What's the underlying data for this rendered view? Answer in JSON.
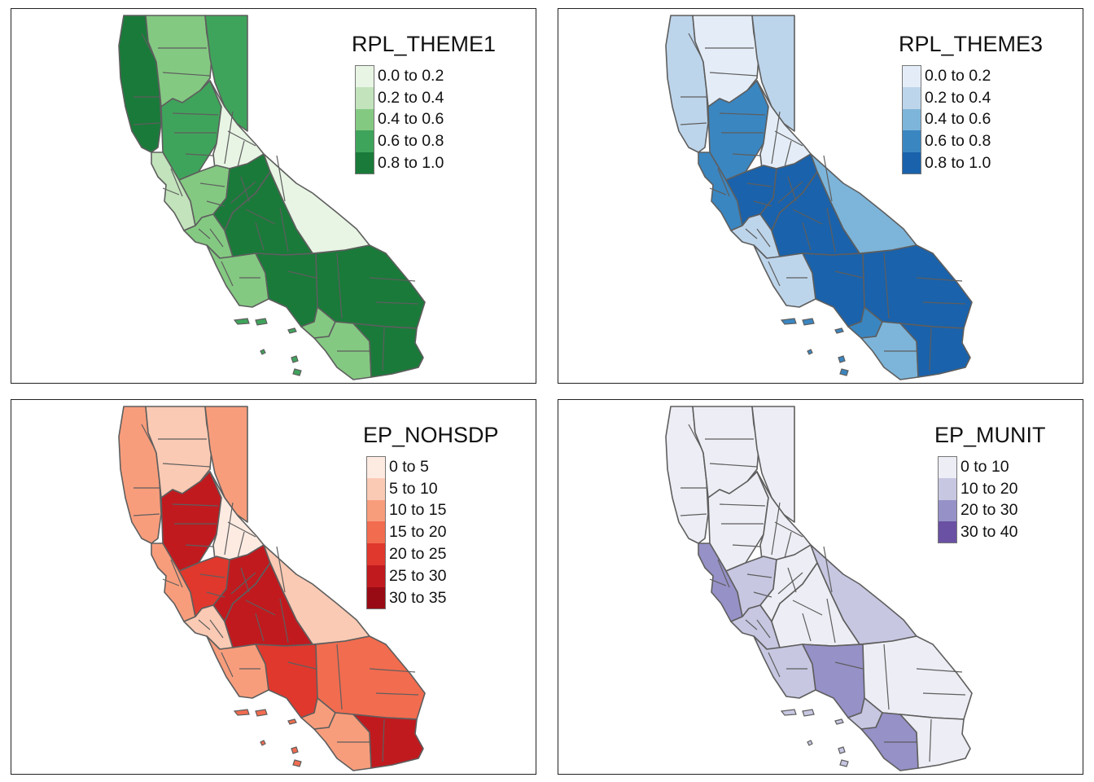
{
  "panels": [
    {
      "id": "rpl_theme1",
      "title": "RPL_THEME1",
      "legend": [
        {
          "label": "0.0 to 0.2",
          "color": "#e8f5e4"
        },
        {
          "label": "0.2 to 0.4",
          "color": "#c2e3bb"
        },
        {
          "label": "0.4 to 0.6",
          "color": "#84c982"
        },
        {
          "label": "0.6 to 0.8",
          "color": "#3fa45b"
        },
        {
          "label": "0.8 to 1.0",
          "color": "#1a7a3a"
        }
      ],
      "regions": {
        "north_coast": 4,
        "north_interior": 2,
        "northeast": 3,
        "sacramento_valley": 3,
        "sierra": 0,
        "bay_area": 1,
        "delta": 2,
        "central_valley": 4,
        "central_coast": 2,
        "eastern_sierra": 0,
        "south_valley": 4,
        "south_coast": 2,
        "los_angeles": 4,
        "inland_empire": 4,
        "orange": 2,
        "san_diego": 2,
        "imperial": 4,
        "islands": 3
      }
    },
    {
      "id": "rpl_theme3",
      "title": "RPL_THEME3",
      "legend": [
        {
          "label": "0.0 to 0.2",
          "color": "#e4edf7"
        },
        {
          "label": "0.2 to 0.4",
          "color": "#bdd5eb"
        },
        {
          "label": "0.4 to 0.6",
          "color": "#7db5da"
        },
        {
          "label": "0.6 to 0.8",
          "color": "#3a86c1"
        },
        {
          "label": "0.8 to 1.0",
          "color": "#1a62ab"
        }
      ],
      "regions": {
        "north_coast": 1,
        "north_interior": 0,
        "northeast": 1,
        "sacramento_valley": 3,
        "sierra": 0,
        "bay_area": 3,
        "delta": 4,
        "central_valley": 4,
        "central_coast": 1,
        "eastern_sierra": 2,
        "south_valley": 4,
        "south_coast": 1,
        "los_angeles": 4,
        "inland_empire": 4,
        "orange": 3,
        "san_diego": 2,
        "imperial": 4,
        "islands": 3
      }
    },
    {
      "id": "ep_nohsdp",
      "title": "EP_NOHSDP",
      "legend": [
        {
          "label": "0 to 5",
          "color": "#fdebe2"
        },
        {
          "label": "5 to 10",
          "color": "#fbcab4"
        },
        {
          "label": "10 to 15",
          "color": "#f89d7c"
        },
        {
          "label": "15 to 20",
          "color": "#f26c4f"
        },
        {
          "label": "20 to 25",
          "color": "#e0382d"
        },
        {
          "label": "25 to 30",
          "color": "#c01a1f"
        },
        {
          "label": "30 to 35",
          "color": "#980b14"
        }
      ],
      "regions": {
        "north_coast": 2,
        "north_interior": 1,
        "northeast": 2,
        "sacramento_valley": 5,
        "sierra": 0,
        "bay_area": 2,
        "delta": 4,
        "central_valley": 5,
        "central_coast": 1,
        "eastern_sierra": 1,
        "south_valley": 5,
        "south_coast": 2,
        "los_angeles": 4,
        "inland_empire": 3,
        "orange": 2,
        "san_diego": 2,
        "imperial": 5,
        "islands": 3
      }
    },
    {
      "id": "ep_munit",
      "title": "EP_MUNIT",
      "legend": [
        {
          "label": "0 to 10",
          "color": "#ededf5"
        },
        {
          "label": "10 to 20",
          "color": "#c7c7e2"
        },
        {
          "label": "20 to 30",
          "color": "#9691c7"
        },
        {
          "label": "30 to 40",
          "color": "#6a51a3"
        }
      ],
      "regions": {
        "north_coast": 0,
        "north_interior": 0,
        "northeast": 0,
        "sacramento_valley": 0,
        "sierra": 0,
        "bay_area": 2,
        "delta": 1,
        "central_valley": 0,
        "central_coast": 1,
        "eastern_sierra": 1,
        "south_valley": 0,
        "south_coast": 1,
        "los_angeles": 2,
        "inland_empire": 0,
        "orange": 1,
        "san_diego": 2,
        "imperial": 0,
        "islands": 1
      }
    }
  ]
}
